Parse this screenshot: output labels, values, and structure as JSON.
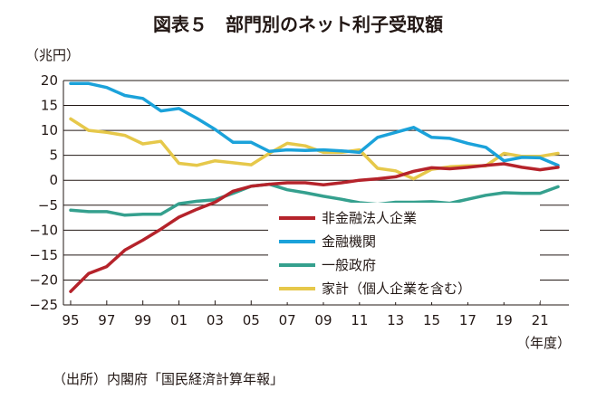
{
  "chart_data": {
    "type": "line",
    "title": "図表５　部門別のネット利子受取額",
    "ylabel": "（兆円）",
    "xlabel": "（年度）",
    "source": "（出所）内閣府「国民経済計算年報」",
    "ylim": [
      -25,
      20
    ],
    "yticks": [
      20,
      15,
      10,
      5,
      0,
      -5,
      -10,
      -15,
      -20,
      -25
    ],
    "ytick_labels": [
      "20",
      "15",
      "10",
      "5",
      "0",
      "−5",
      "−10",
      "−15",
      "−20",
      "−25"
    ],
    "xlim": [
      1994.6,
      2022.6
    ],
    "xticks": [
      1995,
      1997,
      1999,
      2001,
      2003,
      2005,
      2007,
      2009,
      2011,
      2013,
      2015,
      2017,
      2019,
      2021
    ],
    "xtick_labels": [
      "95",
      "97",
      "99",
      "01",
      "03",
      "05",
      "07",
      "09",
      "11",
      "13",
      "15",
      "17",
      "19",
      "21"
    ],
    "grid": "horizontal",
    "legend_position": "lower-right",
    "x": [
      1995,
      1996,
      1997,
      1998,
      1999,
      2000,
      2001,
      2002,
      2003,
      2004,
      2005,
      2006,
      2007,
      2008,
      2009,
      2010,
      2011,
      2012,
      2013,
      2014,
      2015,
      2016,
      2017,
      2018,
      2019,
      2020,
      2021,
      2022
    ],
    "series": [
      {
        "name": "非金融法人企業",
        "color": "#b5232b",
        "values": [
          -22.3,
          -18.7,
          -17.3,
          -14.0,
          -12.0,
          -9.8,
          -7.4,
          -5.8,
          -4.4,
          -2.2,
          -1.2,
          -0.8,
          -0.5,
          -0.5,
          -0.9,
          -0.5,
          0.0,
          0.3,
          0.7,
          1.8,
          2.5,
          2.3,
          2.6,
          3.0,
          3.3,
          2.6,
          2.1,
          2.6
        ]
      },
      {
        "name": "金融機関",
        "color": "#1ba2da",
        "values": [
          19.4,
          19.4,
          18.6,
          17.0,
          16.4,
          13.9,
          14.4,
          12.4,
          10.2,
          7.6,
          7.6,
          5.8,
          6.1,
          6.0,
          6.1,
          5.9,
          5.6,
          8.6,
          9.6,
          10.6,
          8.6,
          8.4,
          7.4,
          6.6,
          3.9,
          4.6,
          4.5,
          3.0
        ]
      },
      {
        "name": "一般政府",
        "color": "#35a08e",
        "values": [
          -6.0,
          -6.3,
          -6.3,
          -7.0,
          -6.8,
          -6.8,
          -4.7,
          -4.2,
          -3.9,
          -2.6,
          -1.2,
          -0.8,
          -1.9,
          -2.5,
          -3.2,
          -3.8,
          -4.5,
          -4.8,
          -4.4,
          -4.4,
          -4.3,
          -4.6,
          -3.8,
          -3.0,
          -2.5,
          -2.6,
          -2.6,
          -1.3
        ]
      },
      {
        "name": "家計（個人企業を含む）",
        "color": "#e6c84a",
        "values": [
          12.3,
          10.0,
          9.6,
          9.0,
          7.3,
          7.8,
          3.4,
          3.0,
          3.9,
          3.5,
          3.1,
          5.4,
          7.4,
          6.9,
          5.6,
          5.6,
          6.1,
          2.4,
          1.9,
          0.3,
          2.2,
          2.7,
          2.9,
          2.9,
          5.4,
          4.8,
          4.8,
          5.4
        ]
      }
    ]
  }
}
